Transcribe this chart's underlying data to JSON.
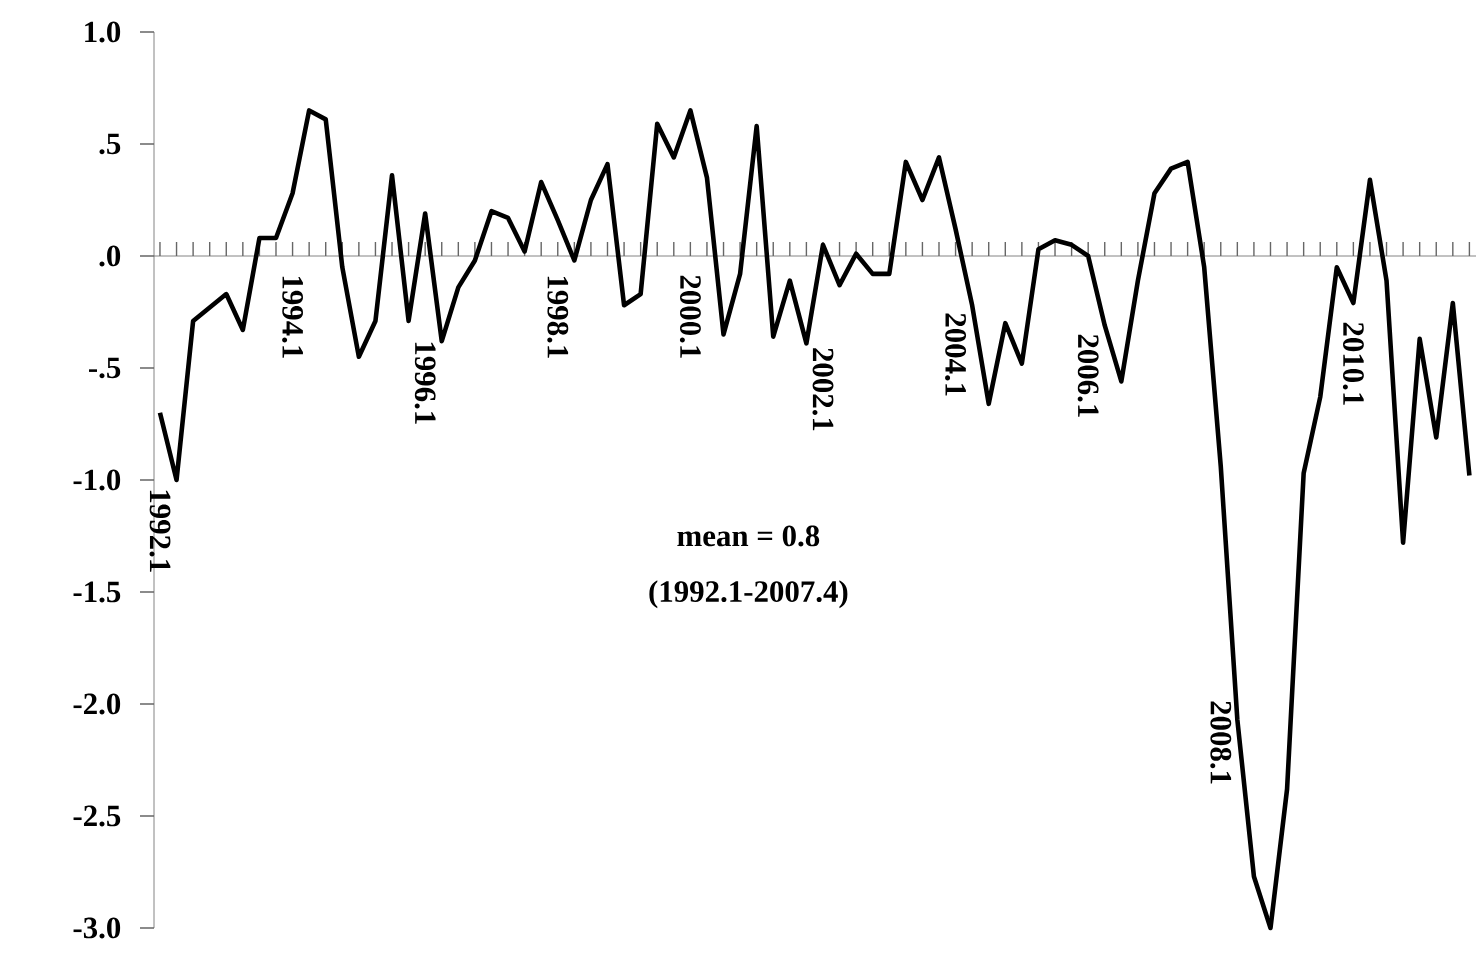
{
  "chart_data": {
    "type": "line",
    "categories": [
      "1992.1",
      null,
      null,
      null,
      null,
      null,
      null,
      null,
      "1994.1",
      null,
      null,
      null,
      null,
      null,
      null,
      null,
      "1996.1",
      null,
      null,
      null,
      null,
      null,
      null,
      null,
      "1998.1",
      null,
      null,
      null,
      null,
      null,
      null,
      null,
      "2000.1",
      null,
      null,
      null,
      null,
      null,
      null,
      null,
      "2002.1",
      null,
      null,
      null,
      null,
      null,
      null,
      null,
      "2004.1",
      null,
      null,
      null,
      null,
      null,
      null,
      null,
      "2006.1",
      null,
      null,
      null,
      null,
      null,
      null,
      null,
      "2008.1",
      null,
      null,
      null,
      null,
      null,
      null,
      null,
      "2010.1",
      null,
      null,
      null,
      null,
      null,
      null,
      null
    ],
    "values": [
      -0.7,
      -1.0,
      -0.29,
      -0.23,
      -0.17,
      -0.33,
      0.08,
      0.08,
      0.28,
      0.65,
      0.61,
      -0.05,
      -0.45,
      -0.29,
      0.36,
      -0.29,
      0.19,
      -0.38,
      -0.14,
      -0.02,
      0.2,
      0.17,
      0.02,
      0.33,
      0.16,
      -0.02,
      0.25,
      0.41,
      -0.22,
      -0.17,
      0.59,
      0.44,
      0.65,
      0.35,
      -0.35,
      -0.08,
      0.58,
      -0.36,
      -0.11,
      -0.39,
      0.05,
      -0.13,
      0.01,
      -0.08,
      -0.08,
      0.42,
      0.25,
      0.44,
      0.12,
      -0.22,
      -0.66,
      -0.3,
      -0.48,
      0.03,
      0.07,
      0.05,
      0.0,
      -0.31,
      -0.56,
      -0.11,
      0.28,
      0.39,
      0.42,
      -0.05,
      -0.94,
      -2.07,
      -2.77,
      -3.0,
      -2.38,
      -0.97,
      -0.63,
      -0.05,
      -0.21,
      0.34,
      -0.11,
      -1.28,
      -0.37,
      -0.81,
      -0.21,
      -0.98
    ],
    "color": "#000000",
    "ylim": [
      -3,
      1
    ],
    "yticks": [
      {
        "value": 1,
        "label": "1.0"
      },
      {
        "value": 0.5,
        "label": ".5"
      },
      {
        "value": 0,
        "label": ".0"
      },
      {
        "value": -0.5,
        "label": "-.5"
      },
      {
        "value": -1,
        "label": "-1.0"
      },
      {
        "value": -1.5,
        "label": "-1.5"
      },
      {
        "value": -2,
        "label": "-2.0"
      },
      {
        "value": -2.5,
        "label": "-2.5"
      },
      {
        "value": -3,
        "label": "-3.0"
      }
    ],
    "annotations": [
      "mean = 0.8",
      "(1992.1-2007.4)"
    ]
  }
}
